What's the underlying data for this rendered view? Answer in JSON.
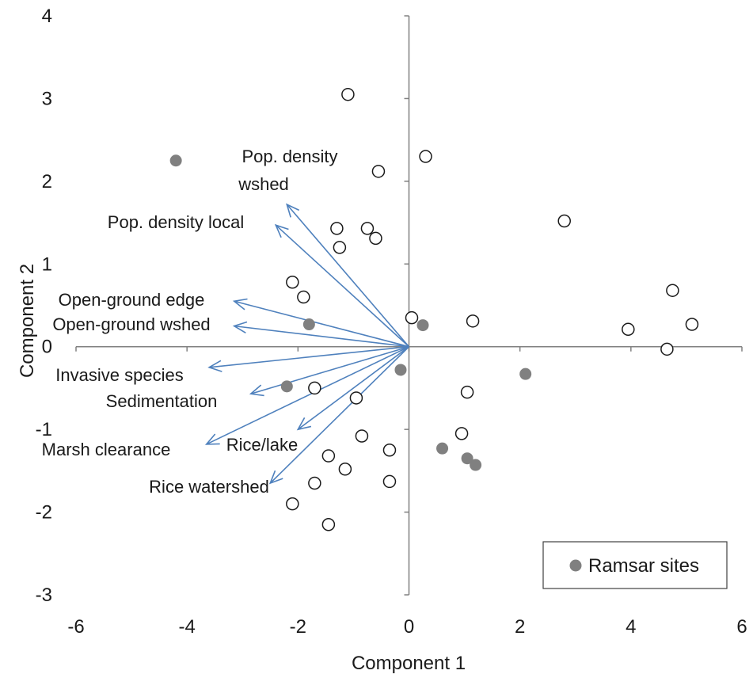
{
  "chart_data": {
    "type": "scatter",
    "xlabel": "Component 1",
    "ylabel": "Component 2",
    "xlim": [
      -6,
      6
    ],
    "ylim": [
      -3,
      4
    ],
    "xticks": [
      "-6",
      "-4",
      "-2",
      "0",
      "2",
      "4",
      "6"
    ],
    "yticks": [
      "4",
      "3",
      "2",
      "1",
      "0",
      "-1",
      "-2",
      "-3"
    ],
    "grid": false,
    "legend": {
      "position": "bottom-right",
      "label": "Ramsar sites"
    },
    "colors": {
      "vectors": "#4f81bd",
      "ramsar": "#808080",
      "open_marker_edge": "#1a1a1a",
      "axes": "#808080"
    },
    "series": [
      {
        "marker": "open",
        "points": [
          [
            -1.1,
            3.05
          ],
          [
            0.3,
            2.3
          ],
          [
            -0.55,
            2.12
          ],
          [
            2.8,
            1.52
          ],
          [
            -1.3,
            1.43
          ],
          [
            -0.75,
            1.43
          ],
          [
            -0.6,
            1.31
          ],
          [
            -1.25,
            1.2
          ],
          [
            -2.1,
            0.78
          ],
          [
            -1.9,
            0.6
          ],
          [
            4.75,
            0.68
          ],
          [
            1.15,
            0.31
          ],
          [
            0.05,
            0.35
          ],
          [
            3.95,
            0.21
          ],
          [
            5.1,
            0.27
          ],
          [
            4.65,
            -0.03
          ],
          [
            -1.7,
            -0.5
          ],
          [
            -0.95,
            -0.62
          ],
          [
            1.05,
            -0.55
          ],
          [
            0.95,
            -1.05
          ],
          [
            -0.85,
            -1.08
          ],
          [
            -0.35,
            -1.25
          ],
          [
            -1.45,
            -1.32
          ],
          [
            -1.15,
            -1.48
          ],
          [
            -0.35,
            -1.63
          ],
          [
            -1.7,
            -1.65
          ],
          [
            -2.1,
            -1.9
          ],
          [
            -1.45,
            -2.15
          ]
        ]
      },
      {
        "name": "Ramsar sites",
        "marker": "filled",
        "points": [
          [
            -4.2,
            2.25
          ],
          [
            -1.8,
            0.27
          ],
          [
            0.25,
            0.26
          ],
          [
            -0.15,
            -0.28
          ],
          [
            2.1,
            -0.33
          ],
          [
            -2.2,
            -0.48
          ],
          [
            0.6,
            -1.23
          ],
          [
            1.05,
            -1.35
          ],
          [
            1.2,
            -1.43
          ]
        ]
      }
    ],
    "vectors": [
      {
        "label": "Pop. density wshed",
        "lines": [
          "Pop. density",
          "wshed"
        ],
        "end": [
          -2.2,
          1.72
        ]
      },
      {
        "label": "Pop. density local",
        "lines": [
          "Pop. density local"
        ],
        "end": [
          -2.4,
          1.47
        ]
      },
      {
        "label": "Open-ground edge",
        "lines": [
          "Open-ground edge"
        ],
        "end": [
          -3.15,
          0.55
        ]
      },
      {
        "label": "Open-ground wshed",
        "lines": [
          "Open-ground wshed"
        ],
        "end": [
          -3.15,
          0.25
        ]
      },
      {
        "label": "Invasive species",
        "lines": [
          "Invasive species"
        ],
        "end": [
          -3.6,
          -0.25
        ]
      },
      {
        "label": "Sedimentation",
        "lines": [
          "Sedimentation"
        ],
        "end": [
          -2.85,
          -0.57
        ]
      },
      {
        "label": "Marsh clearance",
        "lines": [
          "Marsh clearance"
        ],
        "end": [
          -3.65,
          -1.18
        ]
      },
      {
        "label": "Rice/lake",
        "lines": [
          "Rice/lake"
        ],
        "end": [
          -2.0,
          -1.0
        ]
      },
      {
        "label": "Rice watershed",
        "lines": [
          "Rice watershed"
        ],
        "end": [
          -2.5,
          -1.65
        ]
      }
    ]
  }
}
